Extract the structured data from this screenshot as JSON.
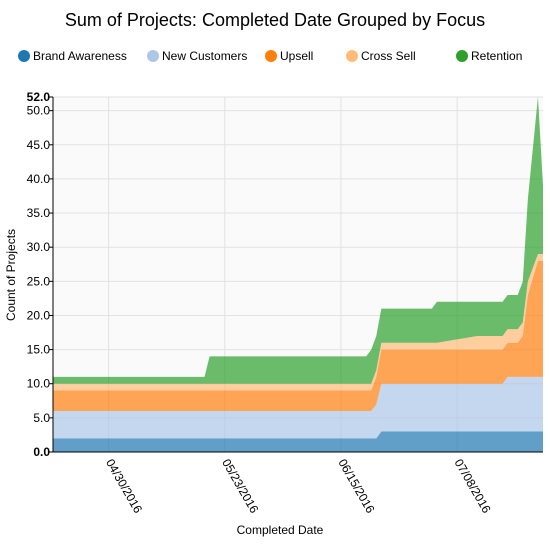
{
  "chart_data": {
    "type": "area",
    "stacked": true,
    "title": "Sum of Projects: Completed Date Grouped by Focus",
    "xlabel": "Completed Date",
    "ylabel": "Count of Projects",
    "ylim": [
      0,
      52
    ],
    "grid": true,
    "legend_position": "top",
    "y_ticks": [
      "0.0",
      "5.0",
      "10.0",
      "15.0",
      "20.0",
      "25.0",
      "30.0",
      "35.0",
      "40.0",
      "45.0",
      "50.0",
      "52.0"
    ],
    "x_ticks": [
      "04/30/2016",
      "05/23/2016",
      "06/15/2016",
      "07/08/2016"
    ],
    "x_range": [
      "2016-04-19",
      "2016-07-25"
    ],
    "x": [
      "2016-04-19",
      "2016-05-19",
      "2016-05-20",
      "2016-06-20",
      "2016-06-21",
      "2016-06-22",
      "2016-06-23",
      "2016-07-03",
      "2016-07-04",
      "2016-07-12",
      "2016-07-13",
      "2016-07-17",
      "2016-07-18",
      "2016-07-19",
      "2016-07-20",
      "2016-07-21",
      "2016-07-22",
      "2016-07-24",
      "2016-07-25"
    ],
    "series": [
      {
        "name": "Brand Awareness",
        "color": "#1f77b4",
        "values": [
          2,
          2,
          2,
          2,
          2,
          2,
          3,
          3,
          3,
          3,
          3,
          3,
          3,
          3,
          3,
          3,
          3,
          3,
          3
        ]
      },
      {
        "name": "New Customers",
        "color": "#aec7e8",
        "values": [
          4,
          4,
          4,
          4,
          4,
          5,
          7,
          7,
          7,
          7,
          7,
          7,
          8,
          8,
          8,
          8,
          8,
          8,
          8
        ]
      },
      {
        "name": "Upsell",
        "color": "#ff7f0e",
        "values": [
          3,
          3,
          3,
          3,
          3,
          4,
          5,
          5,
          5,
          5,
          5,
          5,
          5,
          5,
          5,
          6,
          12,
          17,
          17
        ]
      },
      {
        "name": "Cross Sell",
        "color": "#ffbb78",
        "values": [
          1,
          1,
          1,
          1,
          1,
          1,
          1,
          1,
          1,
          2,
          2,
          2,
          2,
          2,
          2,
          2,
          2,
          1,
          1
        ]
      },
      {
        "name": "Retention",
        "color": "#2ca02c",
        "values": [
          1,
          1,
          4,
          4,
          5,
          5,
          5,
          5,
          6,
          5,
          5,
          5,
          5,
          5,
          5,
          6,
          12,
          23,
          10
        ]
      }
    ]
  }
}
